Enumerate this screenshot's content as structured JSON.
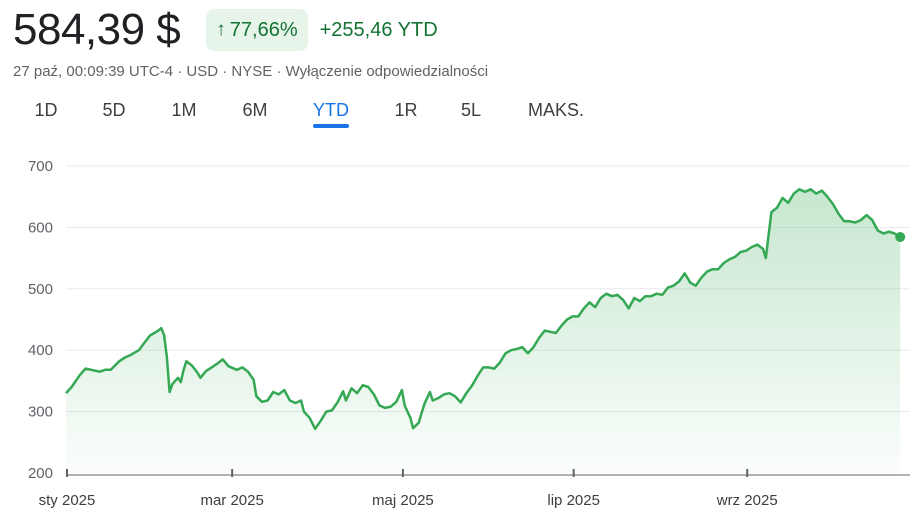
{
  "header": {
    "price": "584,39 $",
    "change_percent": "77,66%",
    "change_abs": "+255,46 YTD",
    "meta": "27 paź, 00:09:39 UTC-4 · USD · NYSE · Wyłączenie odpowiedzialności",
    "up_arrow_icon": "arrow-up-icon"
  },
  "ranges": [
    {
      "label": "1D"
    },
    {
      "label": "5D"
    },
    {
      "label": "1M"
    },
    {
      "label": "6M"
    },
    {
      "label": "YTD",
      "active": true
    },
    {
      "label": "1R"
    },
    {
      "label": "5L"
    },
    {
      "label": "MAKS."
    }
  ],
  "colors": {
    "line": "#34a853",
    "accent": "#1a73e8",
    "up_text": "#137333",
    "badge_bg": "#e6f4ea"
  },
  "chart_data": {
    "type": "area",
    "ylim": [
      200,
      700
    ],
    "yticks": [
      200,
      300,
      400,
      500,
      600,
      700
    ],
    "xticks": [
      {
        "label": "sty 2025",
        "date": "2025-01-01"
      },
      {
        "label": "mar 2025",
        "date": "2025-03-01"
      },
      {
        "label": "maj 2025",
        "date": "2025-05-01"
      },
      {
        "label": "lip 2025",
        "date": "2025-07-01"
      },
      {
        "label": "wrz 2025",
        "date": "2025-09-01"
      }
    ],
    "xlim": [
      "2025-01-01",
      "2025-10-27"
    ],
    "grid": true,
    "last_value": 584.39,
    "series": [
      {
        "points": [
          [
            "2025-01-01",
            330
          ],
          [
            "2025-01-03",
            340
          ],
          [
            "2025-01-06",
            360
          ],
          [
            "2025-01-08",
            370
          ],
          [
            "2025-01-10",
            368
          ],
          [
            "2025-01-13",
            365
          ],
          [
            "2025-01-15",
            368
          ],
          [
            "2025-01-17",
            368
          ],
          [
            "2025-01-20",
            382
          ],
          [
            "2025-01-22",
            388
          ],
          [
            "2025-01-24",
            392
          ],
          [
            "2025-01-27",
            400
          ],
          [
            "2025-01-29",
            412
          ],
          [
            "2025-01-31",
            424
          ],
          [
            "2025-02-03",
            432
          ],
          [
            "2025-02-04",
            436
          ],
          [
            "2025-02-05",
            425
          ],
          [
            "2025-02-06",
            390
          ],
          [
            "2025-02-07",
            332
          ],
          [
            "2025-02-08",
            345
          ],
          [
            "2025-02-10",
            355
          ],
          [
            "2025-02-11",
            348
          ],
          [
            "2025-02-12",
            368
          ],
          [
            "2025-02-13",
            382
          ],
          [
            "2025-02-15",
            375
          ],
          [
            "2025-02-17",
            363
          ],
          [
            "2025-02-18",
            355
          ],
          [
            "2025-02-20",
            366
          ],
          [
            "2025-02-22",
            372
          ],
          [
            "2025-02-24",
            378
          ],
          [
            "2025-02-26",
            385
          ],
          [
            "2025-02-28",
            374
          ],
          [
            "2025-03-03",
            368
          ],
          [
            "2025-03-05",
            372
          ],
          [
            "2025-03-07",
            365
          ],
          [
            "2025-03-09",
            352
          ],
          [
            "2025-03-10",
            325
          ],
          [
            "2025-03-12",
            316
          ],
          [
            "2025-03-14",
            318
          ],
          [
            "2025-03-16",
            332
          ],
          [
            "2025-03-18",
            328
          ],
          [
            "2025-03-20",
            335
          ],
          [
            "2025-03-22",
            318
          ],
          [
            "2025-03-24",
            314
          ],
          [
            "2025-03-26",
            318
          ],
          [
            "2025-03-27",
            300
          ],
          [
            "2025-03-29",
            290
          ],
          [
            "2025-03-31",
            272
          ],
          [
            "2025-04-02",
            285
          ],
          [
            "2025-04-04",
            300
          ],
          [
            "2025-04-06",
            302
          ],
          [
            "2025-04-08",
            315
          ],
          [
            "2025-04-10",
            333
          ],
          [
            "2025-04-11",
            318
          ],
          [
            "2025-04-13",
            338
          ],
          [
            "2025-04-15",
            330
          ],
          [
            "2025-04-17",
            343
          ],
          [
            "2025-04-19",
            340
          ],
          [
            "2025-04-21",
            328
          ],
          [
            "2025-04-23",
            310
          ],
          [
            "2025-04-25",
            306
          ],
          [
            "2025-04-27",
            308
          ],
          [
            "2025-04-29",
            316
          ],
          [
            "2025-05-01",
            335
          ],
          [
            "2025-05-02",
            310
          ],
          [
            "2025-05-04",
            290
          ],
          [
            "2025-05-05",
            273
          ],
          [
            "2025-05-07",
            282
          ],
          [
            "2025-05-09",
            312
          ],
          [
            "2025-05-11",
            332
          ],
          [
            "2025-05-12",
            318
          ],
          [
            "2025-05-14",
            322
          ],
          [
            "2025-05-16",
            328
          ],
          [
            "2025-05-18",
            330
          ],
          [
            "2025-05-20",
            325
          ],
          [
            "2025-05-22",
            315
          ],
          [
            "2025-05-24",
            330
          ],
          [
            "2025-05-26",
            342
          ],
          [
            "2025-05-28",
            358
          ],
          [
            "2025-05-30",
            372
          ],
          [
            "2025-06-01",
            372
          ],
          [
            "2025-06-03",
            370
          ],
          [
            "2025-06-05",
            380
          ],
          [
            "2025-06-07",
            395
          ],
          [
            "2025-06-09",
            400
          ],
          [
            "2025-06-11",
            402
          ],
          [
            "2025-06-13",
            405
          ],
          [
            "2025-06-15",
            395
          ],
          [
            "2025-06-17",
            405
          ],
          [
            "2025-06-19",
            420
          ],
          [
            "2025-06-21",
            432
          ],
          [
            "2025-06-23",
            430
          ],
          [
            "2025-06-25",
            428
          ],
          [
            "2025-06-27",
            440
          ],
          [
            "2025-06-29",
            450
          ],
          [
            "2025-07-01",
            455
          ],
          [
            "2025-07-03",
            455
          ],
          [
            "2025-07-05",
            468
          ],
          [
            "2025-07-07",
            478
          ],
          [
            "2025-07-09",
            470
          ],
          [
            "2025-07-11",
            485
          ],
          [
            "2025-07-13",
            492
          ],
          [
            "2025-07-15",
            488
          ],
          [
            "2025-07-17",
            490
          ],
          [
            "2025-07-19",
            482
          ],
          [
            "2025-07-21",
            468
          ],
          [
            "2025-07-23",
            485
          ],
          [
            "2025-07-25",
            480
          ],
          [
            "2025-07-27",
            488
          ],
          [
            "2025-07-29",
            488
          ],
          [
            "2025-07-31",
            492
          ],
          [
            "2025-08-02",
            490
          ],
          [
            "2025-08-04",
            502
          ],
          [
            "2025-08-06",
            505
          ],
          [
            "2025-08-08",
            512
          ],
          [
            "2025-08-10",
            525
          ],
          [
            "2025-08-12",
            510
          ],
          [
            "2025-08-14",
            505
          ],
          [
            "2025-08-16",
            518
          ],
          [
            "2025-08-18",
            528
          ],
          [
            "2025-08-20",
            532
          ],
          [
            "2025-08-22",
            532
          ],
          [
            "2025-08-24",
            542
          ],
          [
            "2025-08-26",
            548
          ],
          [
            "2025-08-28",
            552
          ],
          [
            "2025-08-30",
            560
          ],
          [
            "2025-09-01",
            562
          ],
          [
            "2025-09-03",
            568
          ],
          [
            "2025-09-05",
            572
          ],
          [
            "2025-09-07",
            565
          ],
          [
            "2025-09-08",
            550
          ],
          [
            "2025-09-10",
            625
          ],
          [
            "2025-09-12",
            632
          ],
          [
            "2025-09-14",
            648
          ],
          [
            "2025-09-16",
            640
          ],
          [
            "2025-09-18",
            655
          ],
          [
            "2025-09-20",
            662
          ],
          [
            "2025-09-22",
            658
          ],
          [
            "2025-09-24",
            662
          ],
          [
            "2025-09-26",
            655
          ],
          [
            "2025-09-28",
            660
          ],
          [
            "2025-09-30",
            650
          ],
          [
            "2025-10-02",
            638
          ],
          [
            "2025-10-04",
            622
          ],
          [
            "2025-10-06",
            610
          ],
          [
            "2025-10-08",
            610
          ],
          [
            "2025-10-10",
            608
          ],
          [
            "2025-10-12",
            612
          ],
          [
            "2025-10-14",
            620
          ],
          [
            "2025-10-16",
            612
          ],
          [
            "2025-10-18",
            595
          ],
          [
            "2025-10-20",
            590
          ],
          [
            "2025-10-22",
            593
          ],
          [
            "2025-10-24",
            590
          ],
          [
            "2025-10-26",
            584.39
          ]
        ]
      }
    ]
  }
}
